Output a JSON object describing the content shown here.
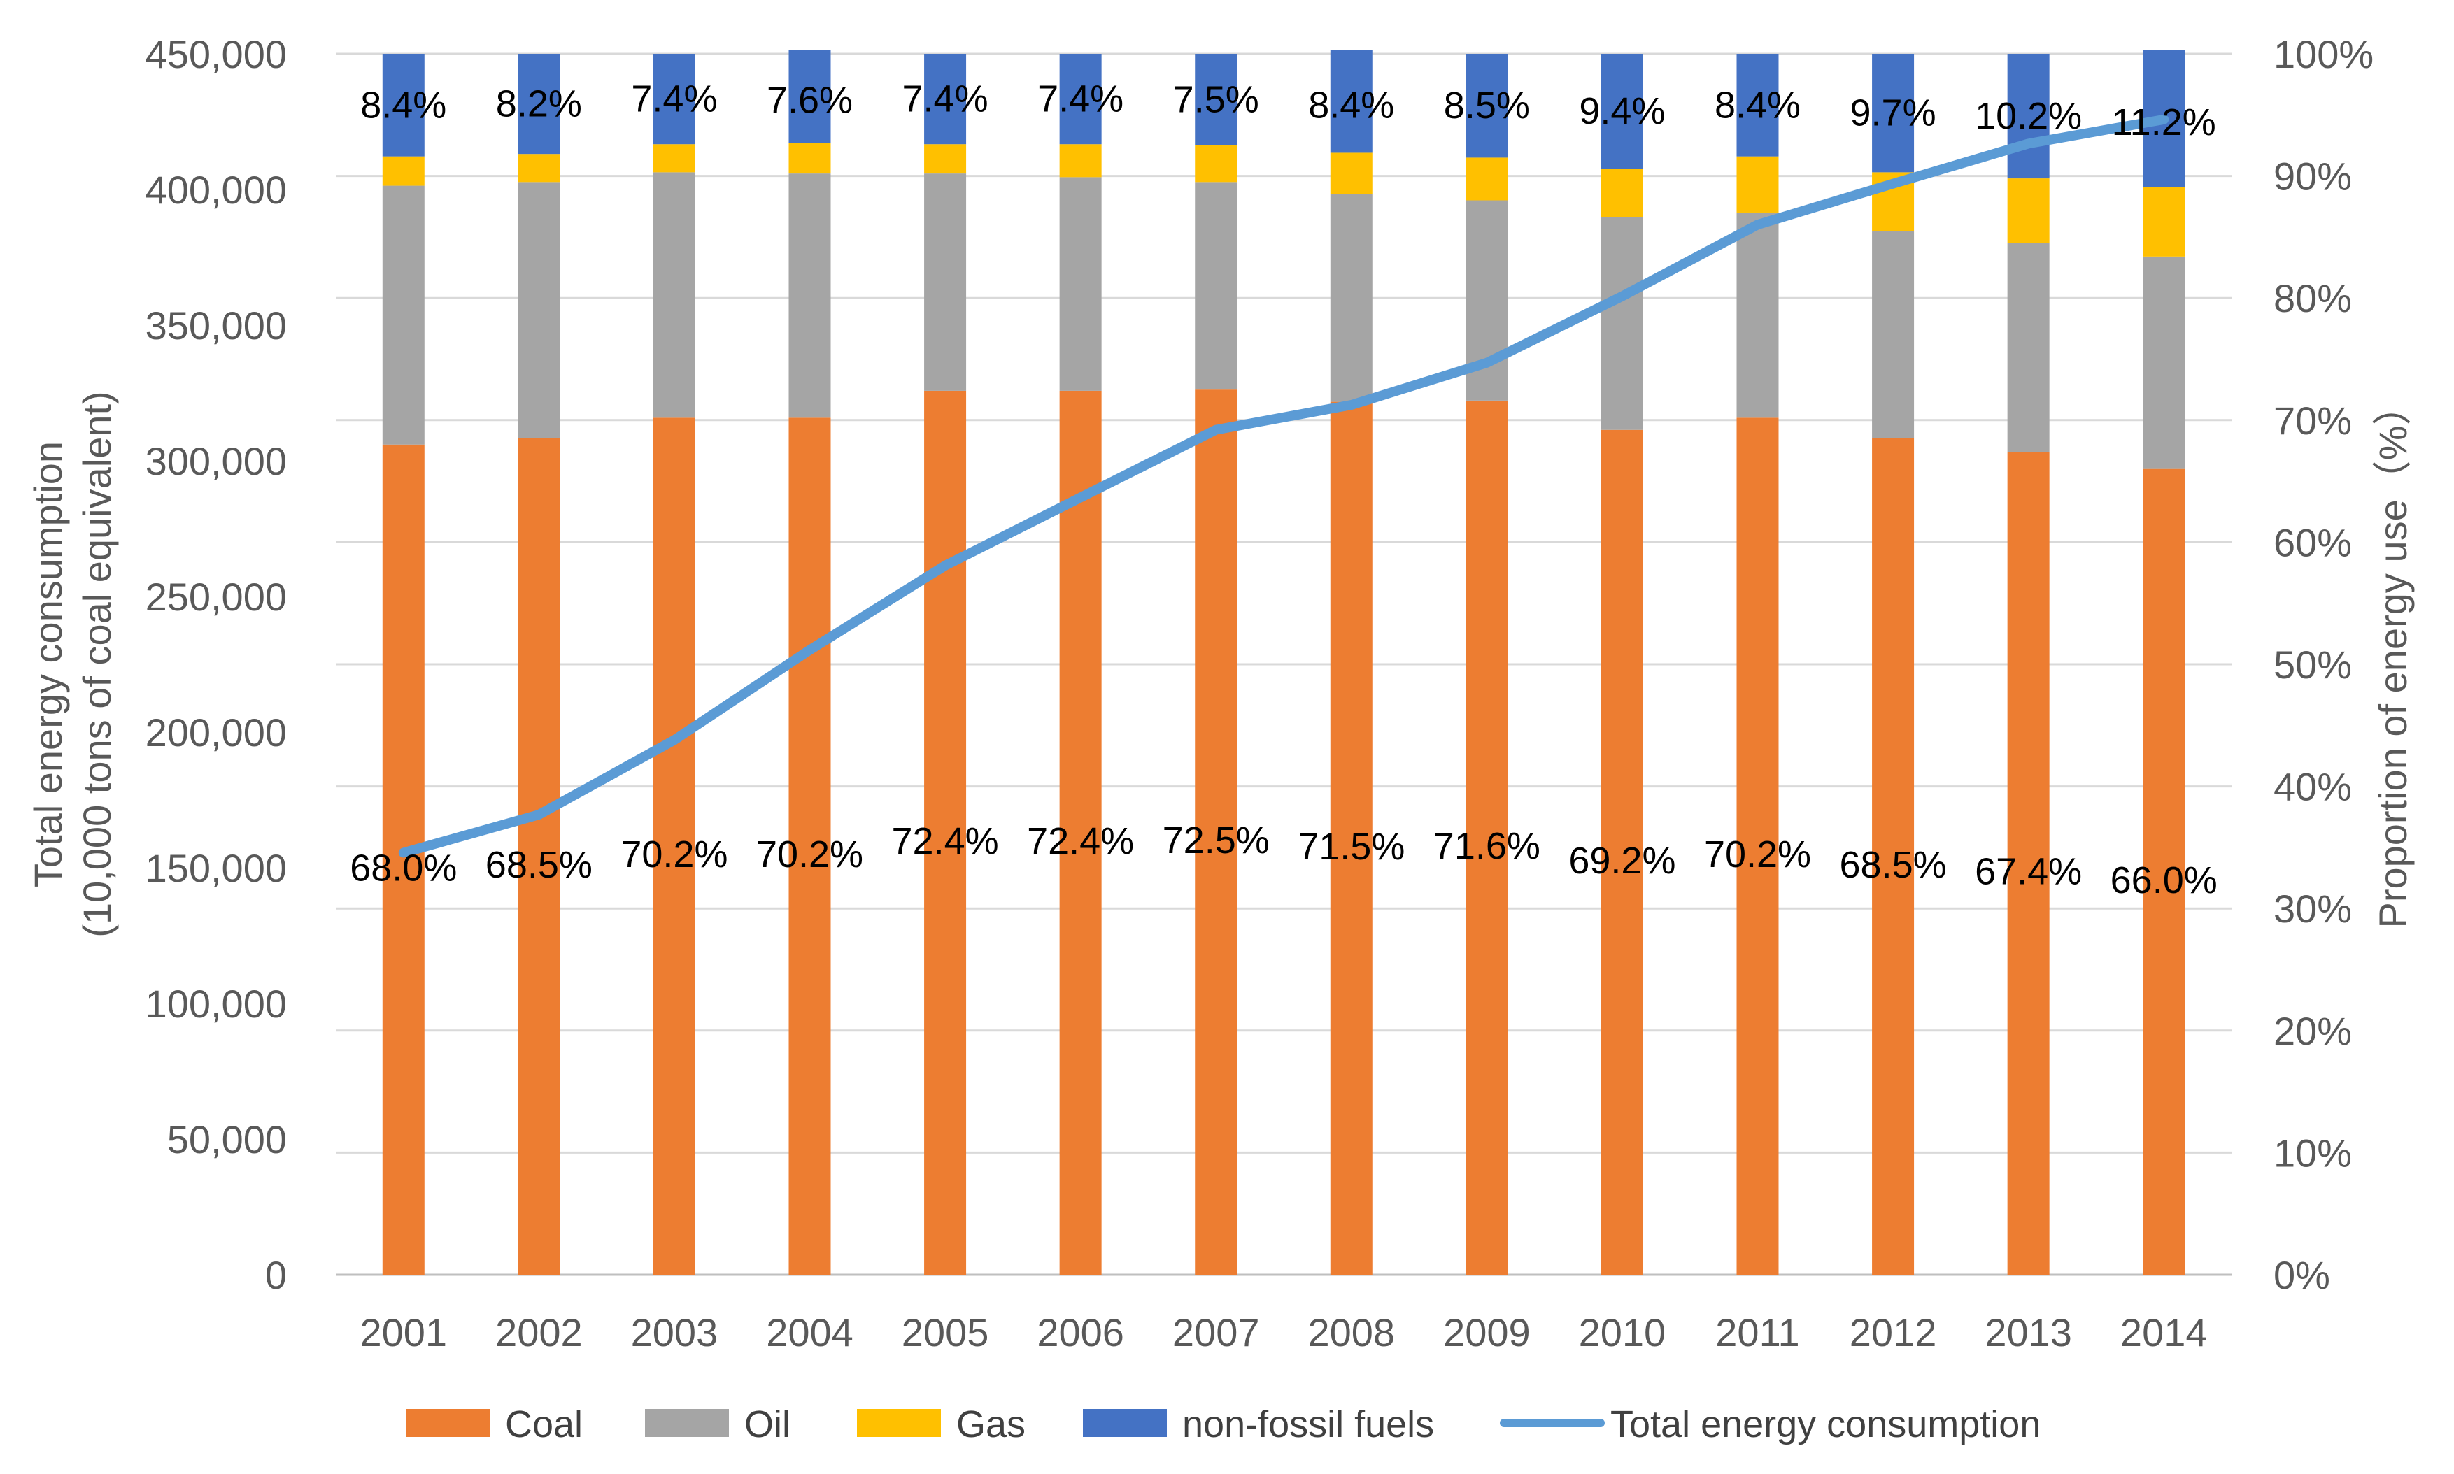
{
  "chart_data": {
    "type": "bar",
    "stacked": true,
    "categories": [
      "2001",
      "2002",
      "2003",
      "2004",
      "2005",
      "2006",
      "2007",
      "2008",
      "2009",
      "2010",
      "2011",
      "2012",
      "2013",
      "2014"
    ],
    "series": [
      {
        "name": "Coal",
        "color": "#ED7D31",
        "values": [
          68.0,
          68.5,
          70.2,
          70.2,
          72.4,
          72.4,
          72.5,
          71.5,
          71.6,
          69.2,
          70.2,
          68.5,
          67.4,
          66.0
        ],
        "labels": [
          "68.0%",
          "68.5%",
          "70.2%",
          "70.2%",
          "72.4%",
          "72.4%",
          "72.5%",
          "71.5%",
          "71.6%",
          "69.2%",
          "70.2%",
          "68.5%",
          "67.4%",
          "66.0%"
        ]
      },
      {
        "name": "Oil",
        "color": "#A5A5A5",
        "values": [
          21.2,
          21.0,
          20.1,
          20.0,
          17.8,
          17.5,
          17.0,
          17.0,
          16.4,
          17.4,
          16.8,
          17.0,
          17.1,
          17.4
        ]
      },
      {
        "name": "Gas",
        "color": "#FFC000",
        "values": [
          2.4,
          2.3,
          2.3,
          2.5,
          2.4,
          2.7,
          3.0,
          3.4,
          3.5,
          4.0,
          4.6,
          4.8,
          5.3,
          5.7
        ]
      },
      {
        "name": "non-fossil fuels",
        "color": "#4472C4",
        "values": [
          8.4,
          8.2,
          7.4,
          7.6,
          7.4,
          7.4,
          7.5,
          8.4,
          8.5,
          9.4,
          8.4,
          9.7,
          10.2,
          11.2
        ],
        "labels": [
          "8.4%",
          "8.2%",
          "7.4%",
          "7.6%",
          "7.4%",
          "7.4%",
          "7.5%",
          "8.4%",
          "8.5%",
          "9.4%",
          "8.4%",
          "9.7%",
          "10.2%",
          "11.2%"
        ]
      }
    ],
    "line_series": {
      "name": "Total energy consumption",
      "color": "#5B9BD5",
      "axis": "left",
      "values": [
        155547,
        169577,
        197083,
        230281,
        261369,
        286467,
        311442,
        320611,
        336126,
        360648,
        387043,
        402138,
        416913,
        425806
      ]
    },
    "y_left": {
      "title_line1": "Total energy consumption",
      "title_line2": "(10,000 tons of coal equivalent)",
      "min": 0,
      "max": 450000,
      "ticks": [
        "0",
        "50,000",
        "100,000",
        "150,000",
        "200,000",
        "250,000",
        "300,000",
        "350,000",
        "400,000",
        "450,000"
      ]
    },
    "y_right": {
      "title": "Proportion of energy use（%）",
      "min": 0,
      "max": 100,
      "ticks": [
        "0%",
        "10%",
        "20%",
        "30%",
        "40%",
        "50%",
        "60%",
        "70%",
        "80%",
        "90%",
        "100%"
      ]
    },
    "grid": true,
    "legend_position": "bottom",
    "legend": [
      "Coal",
      "Oil",
      "Gas",
      "non-fossil fuels",
      "Total energy consumption"
    ]
  }
}
